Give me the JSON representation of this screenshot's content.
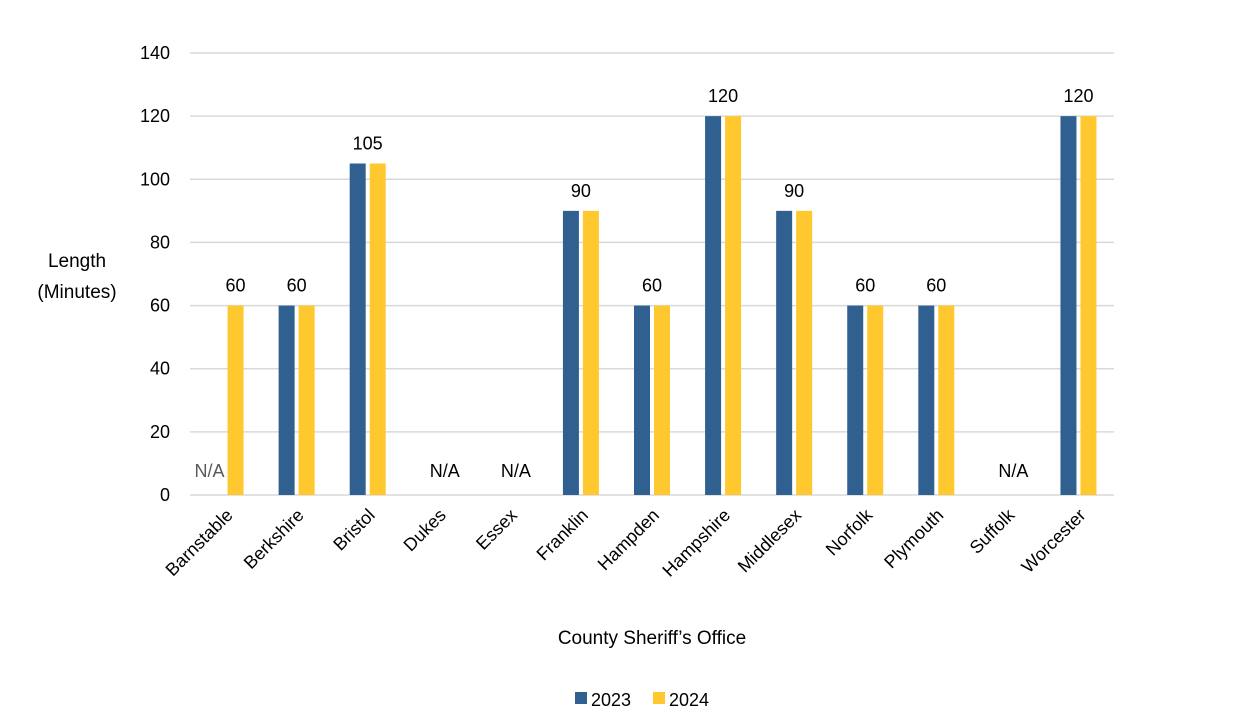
{
  "chart_data": {
    "type": "bar",
    "title": "",
    "xlabel": "County Sheriff’s Office",
    "ylabel": [
      "Length",
      "(Minutes)"
    ],
    "ylim": [
      0,
      140
    ],
    "yticks": [
      0,
      20,
      40,
      60,
      80,
      100,
      120,
      140
    ],
    "grid": true,
    "legend_position": "bottom",
    "categories": [
      "Barnstable",
      "Berkshire",
      "Bristol",
      "Dukes",
      "Essex",
      "Franklin",
      "Hampden",
      "Hampshire",
      "Middlesex",
      "Norfolk",
      "Plymouth",
      "Suffolk",
      "Worcester"
    ],
    "series": [
      {
        "name": "2023",
        "color": "#2F6090",
        "values": [
          null,
          60,
          105,
          null,
          null,
          90,
          60,
          120,
          90,
          60,
          60,
          null,
          120
        ]
      },
      {
        "name": "2024",
        "color": "#FFC82E",
        "values": [
          60,
          60,
          105,
          null,
          null,
          90,
          60,
          120,
          90,
          60,
          60,
          null,
          120
        ]
      }
    ],
    "data_labels": [
      "60",
      "60",
      "105",
      "N/A",
      "N/A",
      "90",
      "60",
      "120",
      "90",
      "60",
      "60",
      "N/A",
      "120"
    ],
    "barnstable_2023_label": "N/A"
  }
}
